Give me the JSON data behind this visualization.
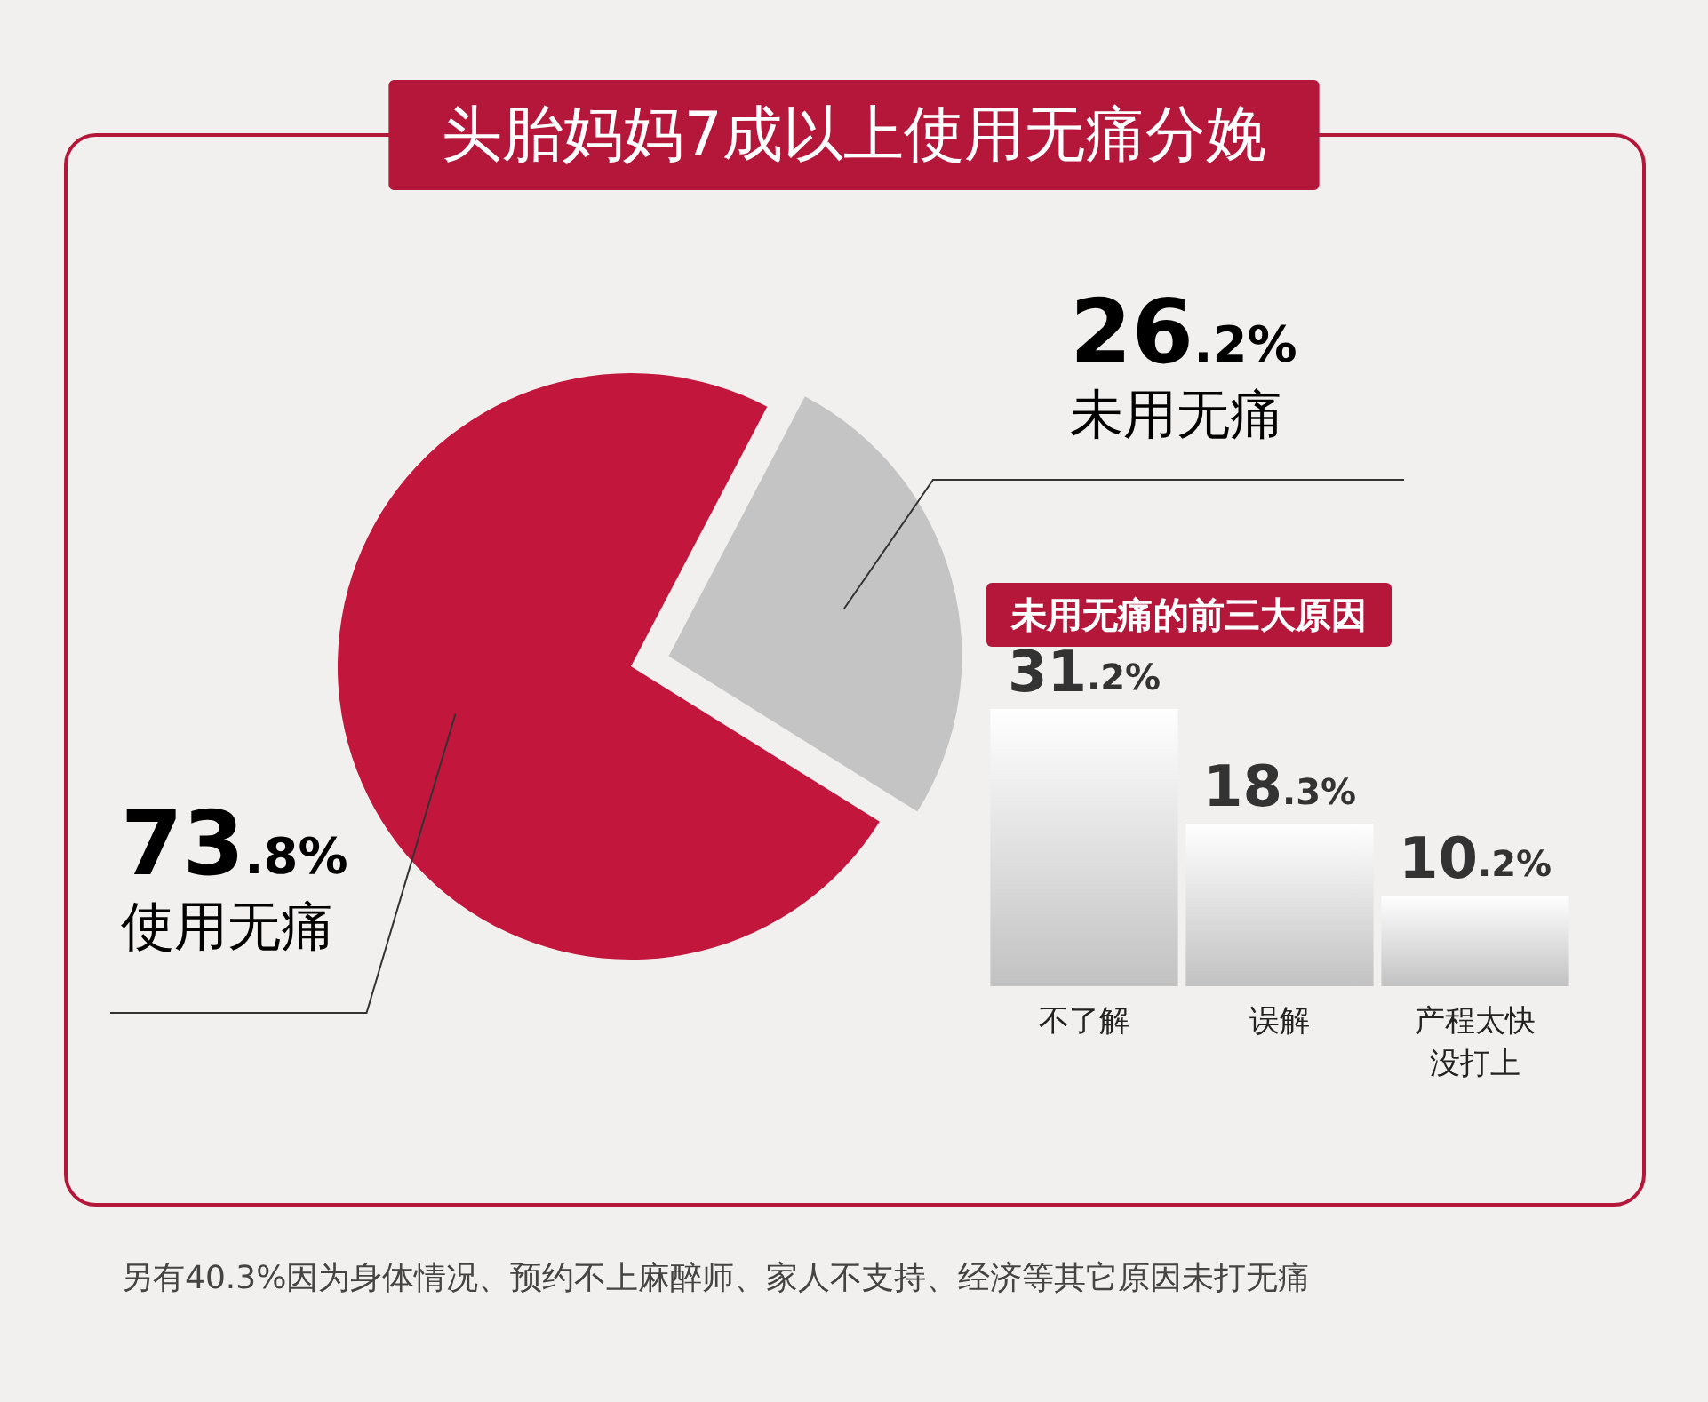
{
  "chart_data": [
    {
      "type": "pie",
      "title": "头胎妈妈7成以上使用无痛分娩",
      "categories": [
        "使用无痛",
        "未用无痛"
      ],
      "values": [
        73.8,
        26.2
      ],
      "colors": [
        "#c3163d",
        "#c4c4c4"
      ],
      "value_labels": [
        "73.8%",
        "26.2%"
      ],
      "legend": false,
      "annotations": [
        "另有40.3%因为身体情况、预约不上麻醉师、家人不支持、经济等其它原因未打无痛"
      ]
    },
    {
      "type": "bar",
      "title": "未用无痛的前三大原因",
      "categories": [
        "不了解",
        "误解",
        "产程太快没打上"
      ],
      "values": [
        31.2,
        18.3,
        10.2
      ],
      "color": "#c2c2c2",
      "value_labels": [
        "31.2%",
        "18.3%",
        "10.2%"
      ],
      "tick_labels": "x",
      "legend": false
    }
  ]
}
